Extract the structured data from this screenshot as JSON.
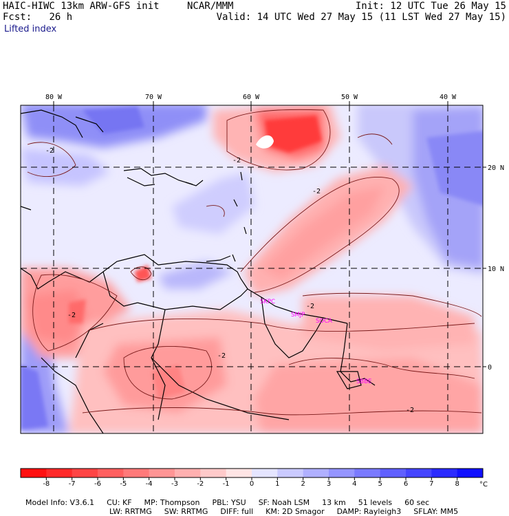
{
  "header": {
    "model_title": "HAIC-HIWC 13km ARW-GFS init",
    "org": "NCAR/MMM",
    "init": "Init: 12 UTC Tue 26 May 15",
    "fcst_label": "Fcst:",
    "fcst_value": "26 h",
    "valid": "Valid: 14 UTC Wed 27 May 15 (11 LST Wed 27 May 15)",
    "field": "Lifted index"
  },
  "map": {
    "lon_labels": [
      "80 W",
      "70 W",
      "60 W",
      "50 W",
      "40 W"
    ],
    "lat_labels": [
      "20 N",
      "10 N",
      "0"
    ],
    "stations": [
      "SKPC",
      "SMJP",
      "SOCA",
      "SBBE"
    ],
    "contour_labels": [
      "-2",
      "-2",
      "-2",
      "-2",
      "-2",
      "-2",
      "-2"
    ]
  },
  "colorbar": {
    "ticks": [
      "-8",
      "-7",
      "-6",
      "-5",
      "-4",
      "-3",
      "-2",
      "-1",
      "0",
      "1",
      "2",
      "3",
      "4",
      "5",
      "6",
      "7",
      "8"
    ],
    "unit": "°C",
    "colors": [
      "#ff1010",
      "#ff2a2a",
      "#ff4545",
      "#ff6060",
      "#ff7a7a",
      "#ff9595",
      "#ffb0b0",
      "#ffcaca",
      "#ffe5e5",
      "#e5e5ff",
      "#cacaff",
      "#b0b0ff",
      "#9595ff",
      "#7a7aff",
      "#6060ff",
      "#4545ff",
      "#2a2aff",
      "#1010ff"
    ]
  },
  "footer": {
    "row1": [
      "Model Info: V3.6.1",
      "CU: KF",
      "MP: Thompson",
      "PBL: YSU",
      "SF: Noah LSM",
      "13 km",
      "51 levels",
      "60 sec"
    ],
    "row2": [
      "LW: RRTMG",
      "SW: RRTMG",
      "DIFF: full",
      "KM: 2D Smagor",
      "DAMP: Rayleigh3",
      "SFLAY: MM5"
    ]
  }
}
